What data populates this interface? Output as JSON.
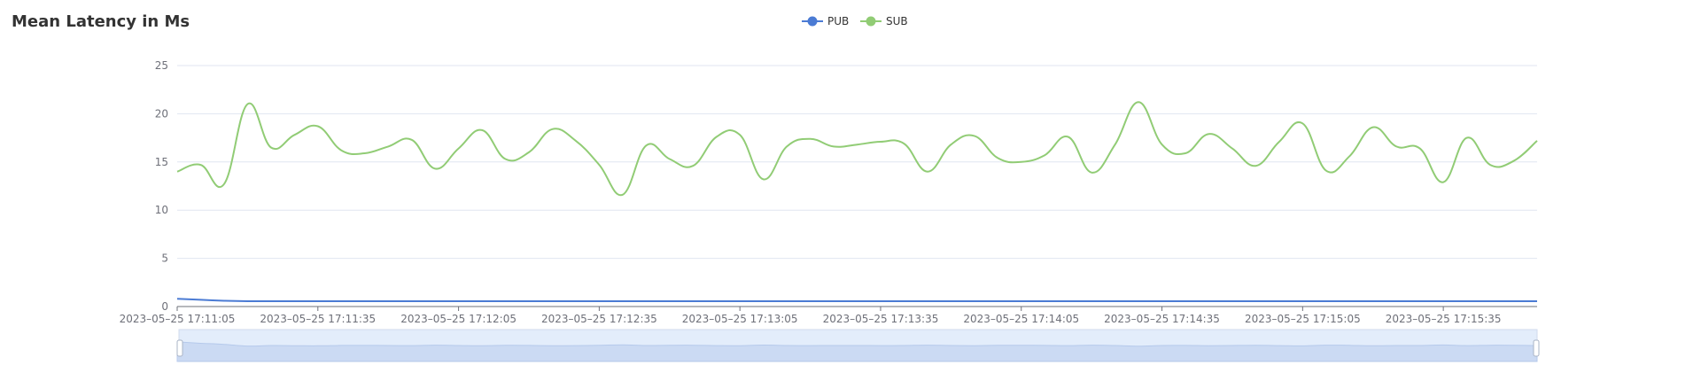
{
  "colors": {
    "pub": "#4b7bd4",
    "sub": "#91cc75",
    "grid": "#e0e6f1",
    "axis": "#6e7079"
  },
  "chart_data": {
    "type": "line",
    "title": "Mean Latency in Ms",
    "xlabel": "",
    "ylabel": "",
    "ylim": [
      0,
      25
    ],
    "yticks": [
      0,
      5,
      10,
      15,
      20,
      25
    ],
    "xlim": [
      "2023-05-25 17:11:05",
      "2023-05-25 17:15:55"
    ],
    "xticks": [
      "2023-05-25 17:11:05",
      "2023-05-25 17:11:35",
      "2023-05-25 17:12:05",
      "2023-05-25 17:12:35",
      "2023-05-25 17:13:05",
      "2023-05-25 17:13:35",
      "2023-05-25 17:14:05",
      "2023-05-25 17:14:35",
      "2023-05-25 17:15:05",
      "2023-05-25 17:15:35"
    ],
    "grid": true,
    "legend_position": "top-center",
    "data_zoom_slider": true,
    "x": [
      "2023-05-25 17:11:05",
      "2023-05-25 17:11:10",
      "2023-05-25 17:11:15",
      "2023-05-25 17:11:20",
      "2023-05-25 17:11:25",
      "2023-05-25 17:11:30",
      "2023-05-25 17:11:35",
      "2023-05-25 17:11:40",
      "2023-05-25 17:11:45",
      "2023-05-25 17:11:50",
      "2023-05-25 17:11:55",
      "2023-05-25 17:12:00",
      "2023-05-25 17:12:05",
      "2023-05-25 17:12:10",
      "2023-05-25 17:12:15",
      "2023-05-25 17:12:20",
      "2023-05-25 17:12:25",
      "2023-05-25 17:12:30",
      "2023-05-25 17:12:35",
      "2023-05-25 17:12:40",
      "2023-05-25 17:12:45",
      "2023-05-25 17:12:50",
      "2023-05-25 17:12:55",
      "2023-05-25 17:13:00",
      "2023-05-25 17:13:05",
      "2023-05-25 17:13:10",
      "2023-05-25 17:13:15",
      "2023-05-25 17:13:20",
      "2023-05-25 17:13:25",
      "2023-05-25 17:13:30",
      "2023-05-25 17:13:35",
      "2023-05-25 17:13:40",
      "2023-05-25 17:13:45",
      "2023-05-25 17:13:50",
      "2023-05-25 17:13:55",
      "2023-05-25 17:14:00",
      "2023-05-25 17:14:05",
      "2023-05-25 17:14:10",
      "2023-05-25 17:14:15",
      "2023-05-25 17:14:20",
      "2023-05-25 17:14:25",
      "2023-05-25 17:14:30",
      "2023-05-25 17:14:35",
      "2023-05-25 17:14:40",
      "2023-05-25 17:14:45",
      "2023-05-25 17:14:50",
      "2023-05-25 17:14:55",
      "2023-05-25 17:15:00",
      "2023-05-25 17:15:05",
      "2023-05-25 17:15:10",
      "2023-05-25 17:15:15",
      "2023-05-25 17:15:20",
      "2023-05-25 17:15:25",
      "2023-05-25 17:15:30",
      "2023-05-25 17:15:35",
      "2023-05-25 17:15:40",
      "2023-05-25 17:15:45",
      "2023-05-25 17:15:50",
      "2023-05-25 17:15:55"
    ],
    "series": [
      {
        "name": "PUB",
        "color": "#4b7bd4",
        "values": [
          0.8,
          0.7,
          0.6,
          0.55,
          0.55,
          0.55,
          0.55,
          0.55,
          0.55,
          0.55,
          0.55,
          0.55,
          0.55,
          0.55,
          0.55,
          0.55,
          0.55,
          0.55,
          0.55,
          0.55,
          0.55,
          0.55,
          0.55,
          0.55,
          0.55,
          0.55,
          0.55,
          0.55,
          0.55,
          0.55,
          0.55,
          0.55,
          0.55,
          0.55,
          0.55,
          0.55,
          0.55,
          0.55,
          0.55,
          0.55,
          0.55,
          0.55,
          0.55,
          0.55,
          0.55,
          0.55,
          0.55,
          0.55,
          0.55,
          0.55,
          0.55,
          0.55,
          0.55,
          0.55,
          0.55,
          0.55,
          0.55,
          0.55,
          0.55
        ]
      },
      {
        "name": "SUB",
        "color": "#91cc75",
        "values": [
          14.0,
          14.7,
          12.7,
          21.0,
          16.5,
          17.8,
          18.7,
          16.2,
          15.9,
          16.6,
          17.3,
          14.3,
          16.4,
          18.3,
          15.3,
          16.0,
          18.4,
          17.2,
          14.7,
          11.6,
          16.7,
          15.3,
          14.6,
          17.6,
          17.8,
          13.2,
          16.6,
          17.4,
          16.6,
          16.8,
          17.1,
          16.9,
          14.0,
          16.8,
          17.7,
          15.4,
          15.0,
          15.7,
          17.6,
          13.9,
          16.8,
          21.2,
          16.8,
          15.9,
          17.9,
          16.4,
          14.6,
          17.1,
          19.0,
          14.1,
          15.6,
          18.6,
          16.6,
          16.4,
          12.9,
          17.5,
          14.7,
          15.1,
          17.2
        ]
      }
    ]
  }
}
